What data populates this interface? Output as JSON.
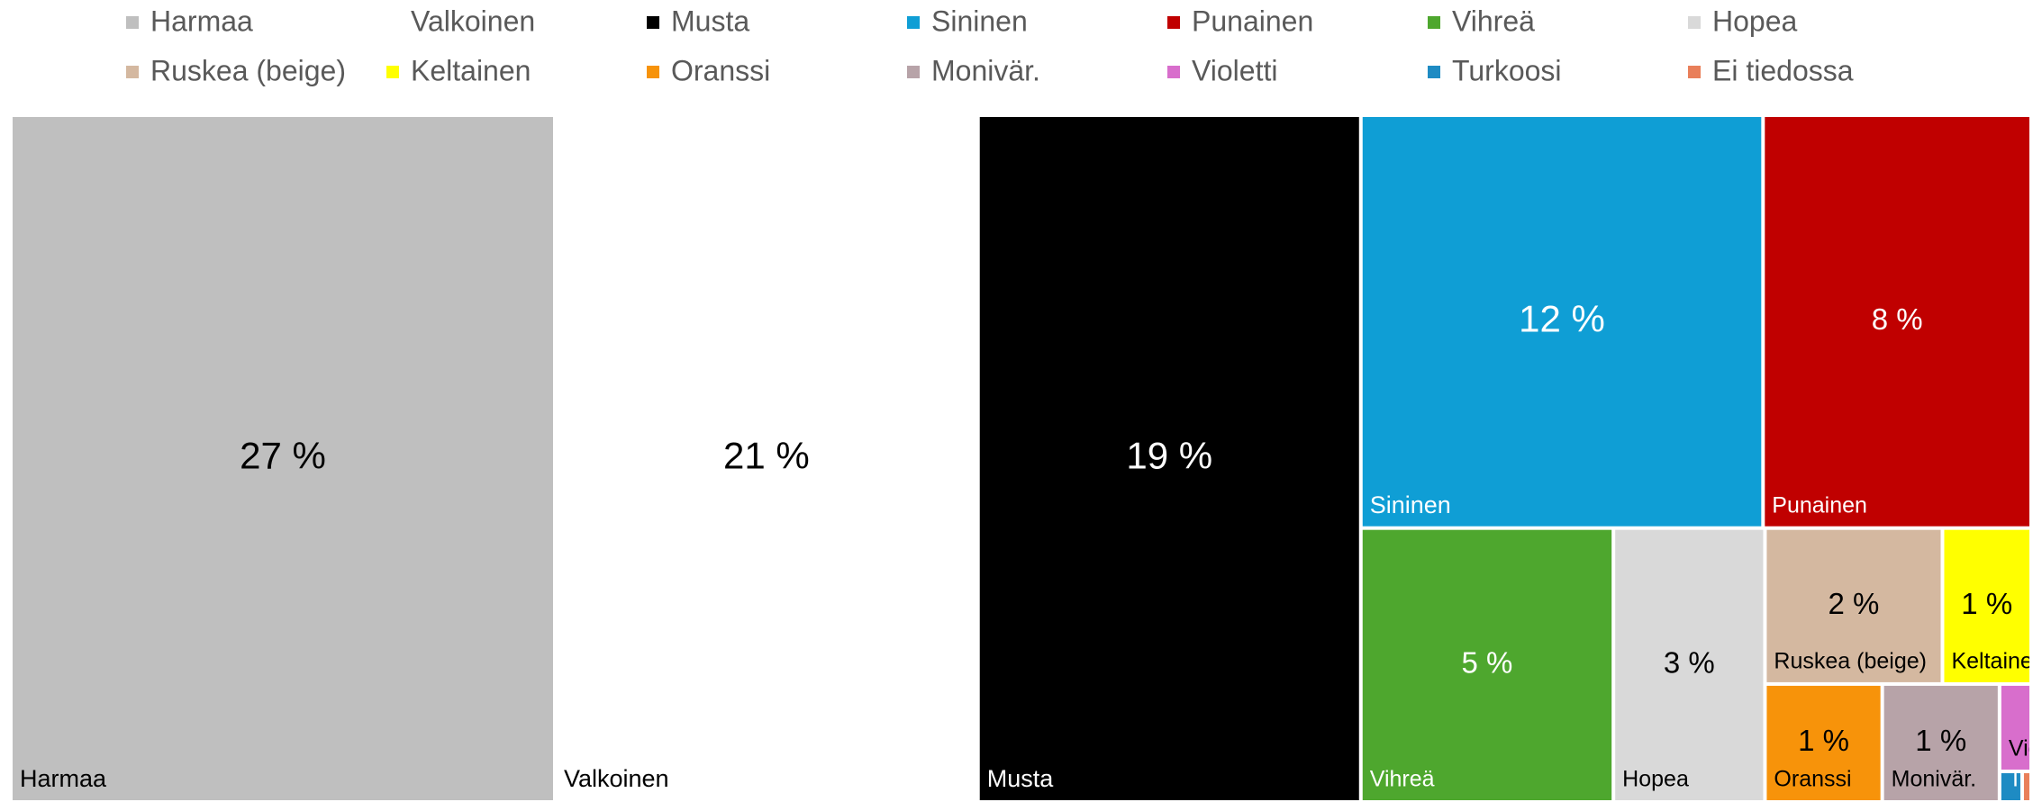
{
  "chart_data": {
    "type": "treemap",
    "categories": [
      "Harmaa",
      "Valkoinen",
      "Musta",
      "Sininen",
      "Punainen",
      "Vihreä",
      "Hopea",
      "Ruskea (beige)",
      "Keltainen",
      "Oranssi",
      "Monivär.",
      "Violetti",
      "Turkoosi",
      "Ei tiedossa"
    ],
    "values": [
      27,
      21,
      19,
      12,
      8,
      5,
      3,
      2,
      1,
      1,
      1,
      0.2,
      0.05,
      0.02
    ],
    "value_labels": [
      "27 %",
      "21 %",
      "19 %",
      "12 %",
      "8 %",
      "5 %",
      "3 %",
      "2 %",
      "1 %",
      "1 %",
      "1 %",
      null,
      null,
      null
    ],
    "colors": [
      "#bfbfbf",
      "#ffffff",
      "#000000",
      "#0f9ed5",
      "#c00000",
      "#4ea72e",
      "#d9d9d9",
      "#d4b8a0",
      "#ffff00",
      "#f7930a",
      "#b7a3a8",
      "#d86ecc",
      "#1e8bc3",
      "#e97f5a"
    ],
    "legend_position": "top"
  }
}
